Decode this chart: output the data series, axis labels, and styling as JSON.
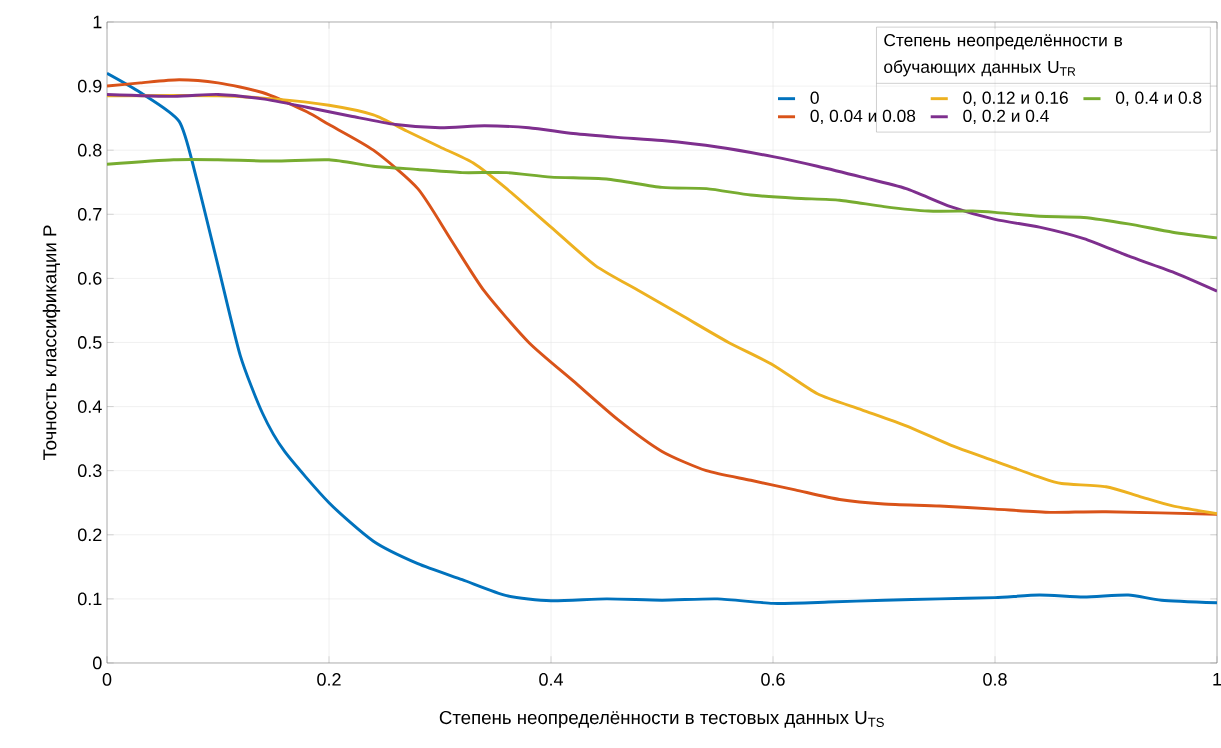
{
  "chart_data": {
    "type": "line",
    "xlabel": "Степень неопределённости в тестовых данных U$_{TS}$",
    "ylabel": "Точность классификации P",
    "legend_title": "Степень неопределённости в обучающих данных U$_{TR}$",
    "xlim": [
      0,
      1
    ],
    "ylim": [
      0,
      1
    ],
    "xticks": [
      0,
      0.2,
      0.4,
      0.6,
      0.8,
      1
    ],
    "yticks": [
      0,
      0.1,
      0.2,
      0.3,
      0.4,
      0.5,
      0.6,
      0.7,
      0.8,
      0.9,
      1
    ],
    "grid": true,
    "legend": "top right",
    "marker": "none",
    "line_style": "solid",
    "series": [
      {
        "name": "0",
        "color": "#0072bd",
        "x": [
          0,
          0.03,
          0.065,
          0.08,
          0.1,
          0.12,
          0.14,
          0.16,
          0.2,
          0.24,
          0.28,
          0.32,
          0.36,
          0.4,
          0.45,
          0.5,
          0.55,
          0.6,
          0.65,
          0.7,
          0.75,
          0.8,
          0.84,
          0.88,
          0.92,
          0.95,
          1
        ],
        "values": [
          0.92,
          0.89,
          0.845,
          0.76,
          0.62,
          0.48,
          0.39,
          0.33,
          0.25,
          0.19,
          0.155,
          0.13,
          0.105,
          0.097,
          0.1,
          0.098,
          0.1,
          0.093,
          0.095,
          0.098,
          0.1,
          0.102,
          0.106,
          0.103,
          0.106,
          0.098,
          0.094
        ]
      },
      {
        "name": "0, 0.04 и 0.08",
        "color": "#d95319",
        "x": [
          0,
          0.03,
          0.065,
          0.1,
          0.14,
          0.18,
          0.2,
          0.24,
          0.28,
          0.31,
          0.34,
          0.38,
          0.42,
          0.46,
          0.5,
          0.54,
          0.58,
          0.62,
          0.66,
          0.7,
          0.75,
          0.8,
          0.85,
          0.9,
          1
        ],
        "values": [
          0.9,
          0.905,
          0.91,
          0.905,
          0.89,
          0.86,
          0.84,
          0.8,
          0.74,
          0.66,
          0.58,
          0.5,
          0.44,
          0.38,
          0.33,
          0.3,
          0.285,
          0.27,
          0.255,
          0.248,
          0.245,
          0.24,
          0.235,
          0.236,
          0.232
        ]
      },
      {
        "name": "0, 0.12 и 0.16",
        "color": "#edb120",
        "x": [
          0,
          0.1,
          0.15,
          0.2,
          0.24,
          0.27,
          0.3,
          0.33,
          0.36,
          0.4,
          0.44,
          0.48,
          0.52,
          0.56,
          0.6,
          0.64,
          0.68,
          0.72,
          0.76,
          0.8,
          0.84,
          0.86,
          0.9,
          0.93,
          0.96,
          1
        ],
        "values": [
          0.885,
          0.885,
          0.88,
          0.87,
          0.855,
          0.83,
          0.805,
          0.78,
          0.74,
          0.68,
          0.62,
          0.58,
          0.54,
          0.5,
          0.465,
          0.42,
          0.395,
          0.37,
          0.34,
          0.315,
          0.29,
          0.28,
          0.275,
          0.26,
          0.245,
          0.233
        ]
      },
      {
        "name": "0, 0.2 и 0.4",
        "color": "#7e2f8e",
        "x": [
          0,
          0.06,
          0.1,
          0.14,
          0.18,
          0.22,
          0.26,
          0.3,
          0.34,
          0.38,
          0.42,
          0.46,
          0.5,
          0.55,
          0.6,
          0.64,
          0.68,
          0.72,
          0.76,
          0.8,
          0.84,
          0.88,
          0.92,
          0.96,
          1
        ],
        "values": [
          0.887,
          0.884,
          0.887,
          0.88,
          0.867,
          0.853,
          0.84,
          0.835,
          0.838,
          0.835,
          0.826,
          0.82,
          0.815,
          0.805,
          0.79,
          0.775,
          0.758,
          0.74,
          0.712,
          0.692,
          0.68,
          0.662,
          0.635,
          0.61,
          0.58
        ]
      },
      {
        "name": "0, 0.4 и 0.8",
        "color": "#77ac30",
        "x": [
          0,
          0.06,
          0.1,
          0.15,
          0.2,
          0.24,
          0.28,
          0.32,
          0.36,
          0.4,
          0.45,
          0.5,
          0.54,
          0.58,
          0.62,
          0.66,
          0.7,
          0.74,
          0.78,
          0.8,
          0.84,
          0.88,
          0.92,
          0.96,
          1
        ],
        "values": [
          0.778,
          0.785,
          0.785,
          0.783,
          0.785,
          0.775,
          0.77,
          0.765,
          0.765,
          0.758,
          0.755,
          0.742,
          0.74,
          0.73,
          0.725,
          0.722,
          0.712,
          0.705,
          0.705,
          0.703,
          0.697,
          0.695,
          0.685,
          0.672,
          0.663
        ]
      }
    ]
  }
}
